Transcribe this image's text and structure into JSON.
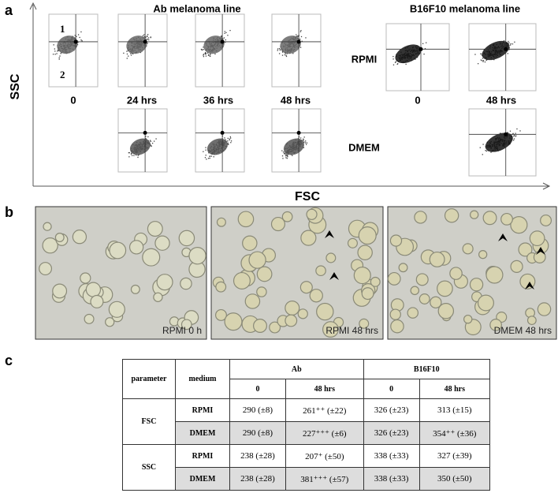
{
  "panel_a": {
    "label": "a",
    "ab_title": "Ab melanoma line",
    "b16_title": "B16F10 melanoma line",
    "y_axis_label": "SSC",
    "x_axis_label": "FSC",
    "quadrant_labels": [
      "1",
      "2"
    ],
    "row_labels": [
      "RPMI",
      "DMEM"
    ],
    "ab_times": [
      "0",
      "24 hrs",
      "36 hrs",
      "48 hrs"
    ],
    "b16_times": [
      "0",
      "48 hrs"
    ]
  },
  "panel_b": {
    "label": "b",
    "captions": [
      "RPMI 0 h",
      "RPMI 48 hrs",
      "DMEM 48 hrs"
    ]
  },
  "panel_c": {
    "label": "c",
    "table": {
      "header": [
        "parameter",
        "medium",
        "Ab",
        "B16F10"
      ],
      "subheader": [
        "0",
        "48 hrs",
        "0",
        "48 hrs"
      ],
      "groups": [
        {
          "parameter": "FSC",
          "rows": [
            {
              "medium": "RPMI",
              "cells": [
                "290 (±8)",
                "261⁺⁺ (±22)",
                "326 (±23)",
                "313 (±15)"
              ]
            },
            {
              "medium": "DMEM",
              "cells": [
                "290 (±8)",
                "227⁺⁺⁺ (±6)",
                "326 (±23)",
                "354⁺⁺ (±36)"
              ]
            }
          ]
        },
        {
          "parameter": "SSC",
          "rows": [
            {
              "medium": "RPMI",
              "cells": [
                "238 (±28)",
                "207⁺ (±50)",
                "338 (±33)",
                "327 (±39)"
              ]
            },
            {
              "medium": "DMEM",
              "cells": [
                "238 (±28)",
                "381⁺⁺⁺ (±57)",
                "338 (±33)",
                "350 (±50)"
              ]
            }
          ]
        }
      ]
    }
  }
}
